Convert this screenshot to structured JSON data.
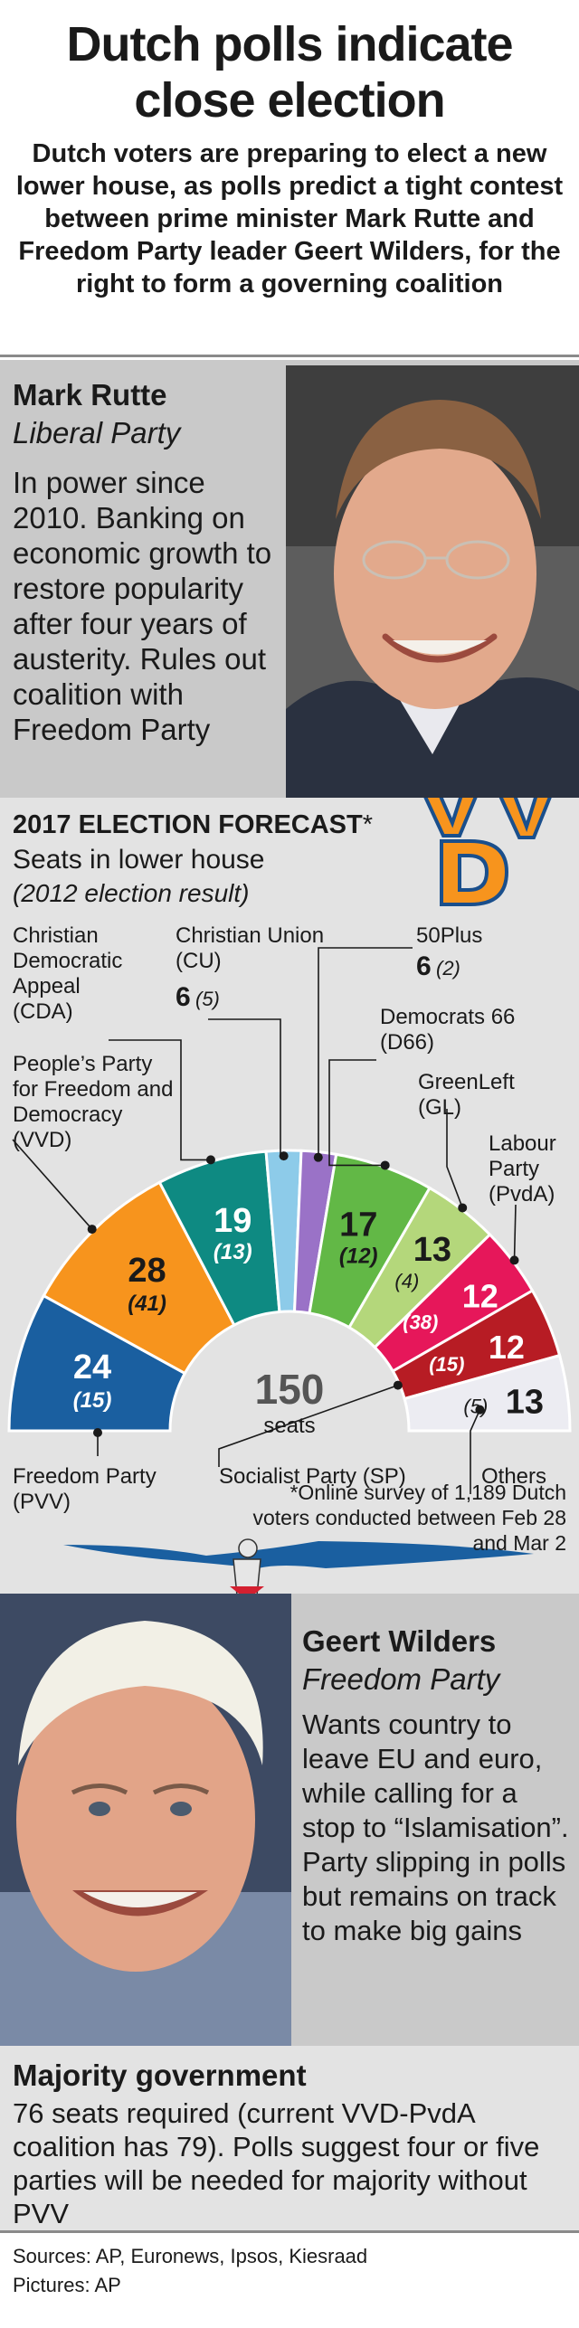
{
  "header": {
    "title": "Dutch polls indicate close election",
    "intro": "Dutch voters are preparing to elect a new lower house, as polls predict a tight contest between prime minister Mark Rutte and Freedom Party leader Geert Wilders, for the right to form a governing coalition"
  },
  "rutte": {
    "name": "Mark Rutte",
    "party": "Liberal Party",
    "description": "In power since 2010. Banking on economic growth to restore popularity after four years of austerity. Rules out coalition with Freedom Party"
  },
  "forecast": {
    "title": "2017 ELECTION FORECAST",
    "title_mark": "*",
    "subtitle": "Seats in lower house",
    "subtitle2": "(2012 election result)",
    "footnote": "*Online survey of 1,189 Dutch voters conducted between Feb 28 and Mar 2",
    "logo_text": "VVD"
  },
  "chart_data": {
    "type": "semicircle-parliament",
    "total_seats": 150,
    "total_label": "150",
    "total_unit": "seats",
    "parties": [
      {
        "name": "Freedom Party (PVV)",
        "seats": 24,
        "previous": 15,
        "color": "#1a5fa0"
      },
      {
        "name": "People's Party for Freedom and Democracy (VVD)",
        "seats": 28,
        "previous": 41,
        "color": "#f7941d"
      },
      {
        "name": "Christian Democratic Appeal (CDA)",
        "seats": 19,
        "previous": 13,
        "color": "#0e8a82"
      },
      {
        "name": "Christian Union (CU)",
        "seats": 6,
        "previous": 5,
        "color": "#8dcbe9"
      },
      {
        "name": "50Plus",
        "seats": 6,
        "previous": 2,
        "color": "#9a72c7"
      },
      {
        "name": "Democrats 66 (D66)",
        "seats": 17,
        "previous": 12,
        "color": "#62b846"
      },
      {
        "name": "GreenLeft (GL)",
        "seats": 13,
        "previous": 4,
        "color": "#b4d77b"
      },
      {
        "name": "Labour Party (PvdA)",
        "seats": 12,
        "previous": 38,
        "color": "#e6175a"
      },
      {
        "name": "Socialist Party (SP)",
        "seats": 12,
        "previous": 15,
        "color": "#b71c24"
      },
      {
        "name": "Others",
        "seats": 13,
        "previous": 5,
        "color": "#ececf2"
      }
    ],
    "labels": {
      "cda": [
        "Christian",
        "Democratic",
        "Appeal",
        "(CDA)"
      ],
      "cu": [
        "Christian Union",
        "(CU)"
      ],
      "plus50": [
        "50Plus"
      ],
      "d66": [
        "Democrats 66",
        "(D66)"
      ],
      "vvd": [
        "People’s Party",
        "for Freedom and",
        "Democracy",
        "(VVD)"
      ],
      "gl": [
        "GreenLeft",
        "(GL)"
      ],
      "pvda": [
        "Labour",
        "Party",
        "(PvdA)"
      ],
      "pvv": [
        "Freedom Party",
        "(PVV)"
      ],
      "sp": [
        "Socialist Party (SP)"
      ],
      "others": [
        "Others"
      ]
    },
    "values": {
      "pvv": {
        "now": "24",
        "prev": "(15)"
      },
      "vvd": {
        "now": "28",
        "prev": "(41)"
      },
      "cda": {
        "now": "19",
        "prev": "(13)"
      },
      "cu": {
        "now": "6",
        "prev": "(5)"
      },
      "plus50": {
        "now": "6",
        "prev": "(2)"
      },
      "d66": {
        "now": "17",
        "prev": "(12)"
      },
      "gl": {
        "now": "13",
        "prev": "(4)"
      },
      "pvda": {
        "now": "12",
        "prev": "(38)"
      },
      "sp": {
        "now": "12",
        "prev": "(15)"
      },
      "others": {
        "now": "13",
        "prev": "(5)"
      }
    }
  },
  "wilders": {
    "name": "Geert Wilders",
    "party": "Freedom Party",
    "description": "Wants country to leave EU and euro, while calling for a stop to “Islamisation”. Party slipping in polls but remains on track to make big gains"
  },
  "majority": {
    "title": "Majority government",
    "description": "76 seats required (current VVD-PvdA coalition has 79). Polls suggest four or five parties will be needed for majority without PVV"
  },
  "footer": {
    "sources": "Sources: AP, Euronews, Ipsos, Kiesraad",
    "pictures": "Pictures: AP"
  }
}
